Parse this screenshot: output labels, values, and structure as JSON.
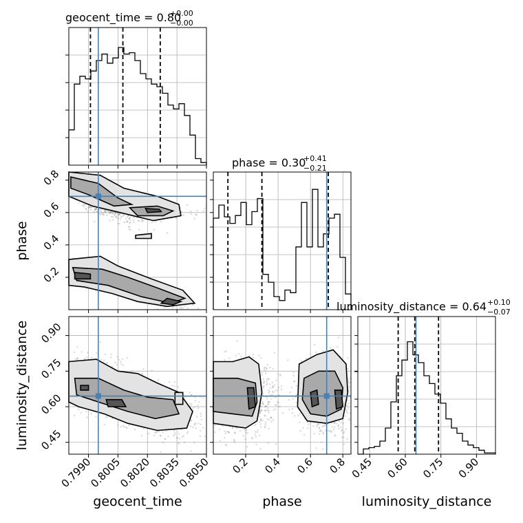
{
  "chart_data": {
    "type": "corner",
    "truth": {
      "geocent_time": 0.7995,
      "phase": 0.7,
      "luminosity_distance": 0.645,
      "color": "#4682b4"
    },
    "parameters": [
      {
        "name": "geocent_time",
        "axis_label": "geocent_time",
        "title_main": "geocent_time = 0.80",
        "title_sup": "+0.00",
        "title_sub": "−0.00",
        "range": [
          0.798,
          0.805
        ],
        "ticks": [
          0.799,
          0.8005,
          0.802,
          0.8035,
          0.805
        ],
        "tick_labels": [
          "0.7990",
          "0.8005",
          "0.8020",
          "0.8035",
          "0.8050"
        ],
        "quantiles": [
          0.7991,
          0.80075,
          0.80265
        ],
        "hist_bin_edges": [
          0.798,
          0.79828,
          0.79856,
          0.79884,
          0.79912,
          0.7994,
          0.79968,
          0.79996,
          0.80024,
          0.80052,
          0.8008,
          0.80108,
          0.80136,
          0.80164,
          0.80192,
          0.8022,
          0.80248,
          0.80276,
          0.80304,
          0.80332,
          0.8036,
          0.80388,
          0.80416,
          0.80444,
          0.80472,
          0.805
        ],
        "hist_counts": [
          0.27,
          0.62,
          0.68,
          0.66,
          0.72,
          0.8,
          0.85,
          0.78,
          0.82,
          0.9,
          0.85,
          0.86,
          0.8,
          0.7,
          0.66,
          0.62,
          0.6,
          0.55,
          0.46,
          0.43,
          0.47,
          0.38,
          0.23,
          0.05,
          0.02
        ]
      },
      {
        "name": "phase",
        "axis_label": "phase",
        "title_main": "phase = 0.30",
        "title_sup": "+0.41",
        "title_sub": "−0.21",
        "range": [
          0.0,
          0.85
        ],
        "ticks": [
          0.2,
          0.4,
          0.6,
          0.8
        ],
        "tick_labels": [
          "0.2",
          "0.4",
          "0.6",
          "0.8"
        ],
        "quantiles": [
          0.09,
          0.3,
          0.71
        ],
        "hist_bin_edges": [
          0.0,
          0.034,
          0.068,
          0.102,
          0.136,
          0.17,
          0.204,
          0.238,
          0.272,
          0.306,
          0.34,
          0.374,
          0.408,
          0.442,
          0.476,
          0.51,
          0.544,
          0.578,
          0.612,
          0.646,
          0.68,
          0.714,
          0.748,
          0.782,
          0.816,
          0.85
        ],
        "hist_counts": [
          0.7,
          0.8,
          0.71,
          0.66,
          0.72,
          0.82,
          0.65,
          0.75,
          0.85,
          0.27,
          0.21,
          0.1,
          0.07,
          0.15,
          0.13,
          0.48,
          0.82,
          0.48,
          0.92,
          0.48,
          0.58,
          0.7,
          0.73,
          0.4,
          0.12
        ]
      },
      {
        "name": "luminosity_distance",
        "axis_label": "luminosity_distance",
        "title_main": "luminosity_distance = 0.64",
        "title_sup": "+0.10",
        "title_sub": "−0.07",
        "range": [
          0.4,
          0.98
        ],
        "ticks": [
          0.45,
          0.6,
          0.75,
          0.9
        ],
        "tick_labels": [
          "0.45",
          "0.60",
          "0.75",
          "0.90"
        ],
        "quantiles": [
          0.57,
          0.64,
          0.74
        ],
        "hist_bin_edges": [
          0.4,
          0.4232,
          0.4464,
          0.4696,
          0.4928,
          0.516,
          0.5392,
          0.5624,
          0.5856,
          0.6088,
          0.632,
          0.6552,
          0.6784,
          0.7016,
          0.7248,
          0.748,
          0.7712,
          0.7944,
          0.8176,
          0.8408,
          0.864,
          0.8872,
          0.9104,
          0.9336,
          0.9568,
          0.98
        ],
        "hist_counts": [
          0.0,
          0.04,
          0.05,
          0.06,
          0.1,
          0.2,
          0.4,
          0.6,
          0.72,
          0.86,
          0.76,
          0.7,
          0.6,
          0.54,
          0.46,
          0.39,
          0.27,
          0.2,
          0.16,
          0.1,
          0.07,
          0.05,
          0.03,
          0.01,
          0.01
        ]
      }
    ],
    "pairs": [
      {
        "x": "geocent_time",
        "y": "phase",
        "clusters": [
          {
            "x": 0.7995,
            "y": 0.66,
            "sx": 0.0009,
            "sy": 0.06,
            "rho": -0.85,
            "n": 450
          },
          {
            "x": 0.802,
            "y": 0.61,
            "sx": 0.0011,
            "sy": 0.03,
            "rho": 0.0,
            "n": 250
          },
          {
            "x": 0.7998,
            "y": 0.19,
            "sx": 0.0008,
            "sy": 0.04,
            "rho": -0.6,
            "n": 450
          },
          {
            "x": 0.8022,
            "y": 0.1,
            "sx": 0.0009,
            "sy": 0.045,
            "rho": -0.8,
            "n": 350
          }
        ],
        "contours": [
          {
            "level": 1,
            "points": [
              [
                0.798,
                0.85
              ],
              [
                0.7996,
                0.83
              ],
              [
                0.8008,
                0.75
              ],
              [
                0.8025,
                0.7
              ],
              [
                0.8036,
                0.65
              ],
              [
                0.8037,
                0.58
              ],
              [
                0.8023,
                0.55
              ],
              [
                0.8006,
                0.6
              ],
              [
                0.7992,
                0.64
              ],
              [
                0.798,
                0.7
              ]
            ]
          },
          {
            "level": 2,
            "points": [
              [
                0.7981,
                0.82
              ],
              [
                0.7995,
                0.78
              ],
              [
                0.8005,
                0.69
              ],
              [
                0.8012,
                0.65
              ],
              [
                0.8003,
                0.64
              ],
              [
                0.799,
                0.71
              ],
              [
                0.7981,
                0.75
              ]
            ]
          },
          {
            "level": 2,
            "points": [
              [
                0.8011,
                0.63
              ],
              [
                0.8025,
                0.64
              ],
              [
                0.8033,
                0.61
              ],
              [
                0.8028,
                0.58
              ],
              [
                0.8015,
                0.58
              ]
            ]
          },
          {
            "level": 3,
            "points": [
              [
                0.8019,
                0.625
              ],
              [
                0.8026,
                0.62
              ],
              [
                0.8027,
                0.605
              ],
              [
                0.802,
                0.6
              ]
            ]
          },
          {
            "level": 1,
            "points": [
              [
                0.798,
                0.31
              ],
              [
                0.7996,
                0.33
              ],
              [
                0.8005,
                0.27
              ],
              [
                0.8022,
                0.19
              ],
              [
                0.8038,
                0.12
              ],
              [
                0.8044,
                0.04
              ],
              [
                0.803,
                0.02
              ],
              [
                0.8015,
                0.05
              ],
              [
                0.8002,
                0.1
              ],
              [
                0.7988,
                0.14
              ],
              [
                0.798,
                0.15
              ]
            ]
          },
          {
            "level": 2,
            "points": [
              [
                0.7982,
                0.26
              ],
              [
                0.7997,
                0.25
              ],
              [
                0.801,
                0.2
              ],
              [
                0.8026,
                0.13
              ],
              [
                0.8039,
                0.07
              ],
              [
                0.8032,
                0.04
              ],
              [
                0.8017,
                0.08
              ],
              [
                0.8,
                0.15
              ],
              [
                0.7984,
                0.18
              ]
            ]
          },
          {
            "level": 3,
            "points": [
              [
                0.7983,
                0.23
              ],
              [
                0.7991,
                0.22
              ],
              [
                0.7991,
                0.19
              ],
              [
                0.7983,
                0.19
              ]
            ]
          },
          {
            "level": 3,
            "points": [
              [
                0.803,
                0.07
              ],
              [
                0.8037,
                0.05
              ],
              [
                0.8033,
                0.03
              ],
              [
                0.8027,
                0.04
              ]
            ]
          },
          {
            "level": 1,
            "points": [
              [
                0.8014,
                0.46
              ],
              [
                0.8022,
                0.47
              ],
              [
                0.8022,
                0.44
              ],
              [
                0.8014,
                0.44
              ]
            ]
          }
        ]
      },
      {
        "x": "geocent_time",
        "y": "luminosity_distance",
        "clusters": [
          {
            "x": 0.8002,
            "y": 0.66,
            "sx": 0.0013,
            "sy": 0.07,
            "rho": -0.55,
            "n": 900
          },
          {
            "x": 0.8028,
            "y": 0.58,
            "sx": 0.001,
            "sy": 0.06,
            "rho": -0.3,
            "n": 400
          }
        ],
        "contours": [
          {
            "level": 1,
            "points": [
              [
                0.798,
                0.79
              ],
              [
                0.7994,
                0.8
              ],
              [
                0.8005,
                0.75
              ],
              [
                0.8015,
                0.74
              ],
              [
                0.8025,
                0.7
              ],
              [
                0.8036,
                0.66
              ],
              [
                0.8043,
                0.58
              ],
              [
                0.804,
                0.51
              ],
              [
                0.8025,
                0.5
              ],
              [
                0.801,
                0.53
              ],
              [
                0.7998,
                0.57
              ],
              [
                0.7985,
                0.6
              ],
              [
                0.798,
                0.62
              ]
            ]
          },
          {
            "level": 2,
            "points": [
              [
                0.7983,
                0.72
              ],
              [
                0.7995,
                0.72
              ],
              [
                0.8008,
                0.67
              ],
              [
                0.802,
                0.64
              ],
              [
                0.8033,
                0.63
              ],
              [
                0.8036,
                0.57
              ],
              [
                0.8024,
                0.55
              ],
              [
                0.801,
                0.58
              ],
              [
                0.7995,
                0.62
              ],
              [
                0.7984,
                0.65
              ]
            ]
          },
          {
            "level": 3,
            "points": [
              [
                0.7999,
                0.63
              ],
              [
                0.8007,
                0.63
              ],
              [
                0.8009,
                0.6
              ],
              [
                0.8,
                0.6
              ]
            ]
          },
          {
            "level": 3,
            "points": [
              [
                0.7986,
                0.69
              ],
              [
                0.799,
                0.69
              ],
              [
                0.799,
                0.67
              ],
              [
                0.7986,
                0.67
              ]
            ]
          },
          {
            "level": 1,
            "points": [
              [
                0.8034,
                0.66
              ],
              [
                0.8038,
                0.66
              ],
              [
                0.8038,
                0.61
              ],
              [
                0.8034,
                0.61
              ]
            ]
          }
        ]
      },
      {
        "x": "phase",
        "y": "luminosity_distance",
        "clusters": [
          {
            "x": 0.18,
            "y": 0.64,
            "sx": 0.1,
            "sy": 0.08,
            "rho": 0.0,
            "n": 800
          },
          {
            "x": 0.7,
            "y": 0.64,
            "sx": 0.09,
            "sy": 0.08,
            "rho": 0.0,
            "n": 700
          }
        ],
        "contours": [
          {
            "level": 1,
            "points": [
              [
                0.0,
                0.79
              ],
              [
                0.12,
                0.79
              ],
              [
                0.22,
                0.81
              ],
              [
                0.28,
                0.78
              ],
              [
                0.3,
                0.66
              ],
              [
                0.27,
                0.54
              ],
              [
                0.2,
                0.51
              ],
              [
                0.1,
                0.52
              ],
              [
                0.0,
                0.53
              ]
            ]
          },
          {
            "level": 2,
            "points": [
              [
                0.0,
                0.72
              ],
              [
                0.15,
                0.72
              ],
              [
                0.26,
                0.7
              ],
              [
                0.27,
                0.62
              ],
              [
                0.24,
                0.56
              ],
              [
                0.12,
                0.57
              ],
              [
                0.0,
                0.58
              ]
            ]
          },
          {
            "level": 3,
            "points": [
              [
                0.21,
                0.68
              ],
              [
                0.25,
                0.68
              ],
              [
                0.26,
                0.6
              ],
              [
                0.22,
                0.59
              ]
            ]
          },
          {
            "level": 1,
            "points": [
              [
                0.53,
                0.78
              ],
              [
                0.64,
                0.82
              ],
              [
                0.74,
                0.84
              ],
              [
                0.82,
                0.78
              ],
              [
                0.83,
                0.66
              ],
              [
                0.8,
                0.55
              ],
              [
                0.7,
                0.53
              ],
              [
                0.58,
                0.54
              ],
              [
                0.52,
                0.6
              ]
            ]
          },
          {
            "level": 2,
            "points": [
              [
                0.56,
                0.72
              ],
              [
                0.65,
                0.75
              ],
              [
                0.75,
                0.75
              ],
              [
                0.8,
                0.68
              ],
              [
                0.79,
                0.59
              ],
              [
                0.7,
                0.56
              ],
              [
                0.6,
                0.57
              ],
              [
                0.55,
                0.63
              ]
            ]
          },
          {
            "level": 3,
            "points": [
              [
                0.6,
                0.66
              ],
              [
                0.64,
                0.67
              ],
              [
                0.65,
                0.61
              ],
              [
                0.61,
                0.6
              ]
            ]
          },
          {
            "level": 3,
            "points": [
              [
                0.75,
                0.67
              ],
              [
                0.79,
                0.67
              ],
              [
                0.8,
                0.6
              ],
              [
                0.76,
                0.59
              ]
            ]
          }
        ]
      }
    ]
  }
}
